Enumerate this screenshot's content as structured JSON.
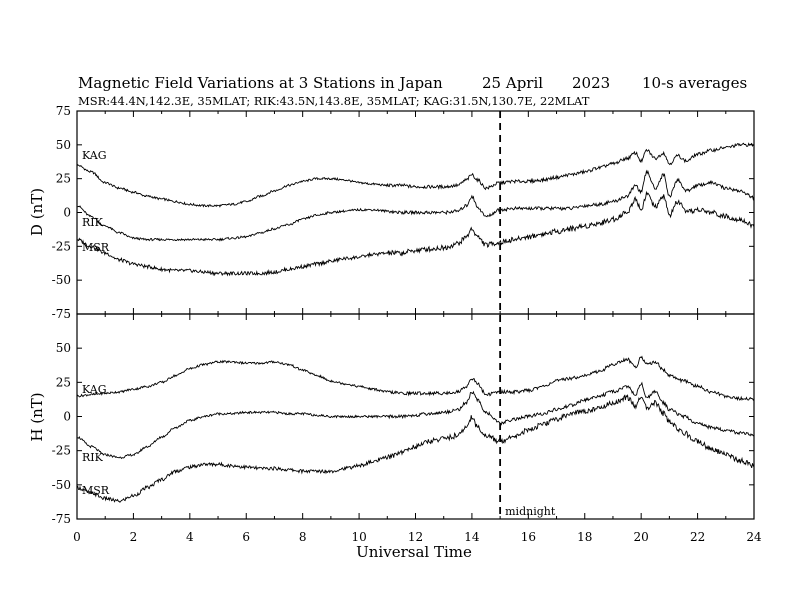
{
  "header": {
    "title_main": "Magnetic Field Variations at 3 Stations in Japan",
    "title_date": "25  April",
    "title_year": "2023",
    "title_avg": "10-s averages",
    "subtitle": "MSR:44.4N,142.3E, 35MLAT;  RIK:43.5N,143.8E, 35MLAT;  KAG:31.5N,130.7E, 22MLAT"
  },
  "annotations": {
    "midnight": "midnight",
    "midnight_ut": 15
  },
  "chart_data": [
    {
      "type": "line",
      "panel": "D",
      "ylabel": "D (nT)",
      "xlim": [
        0,
        24
      ],
      "ylim": [
        -75,
        75
      ],
      "yticks": [
        75,
        50,
        25,
        0,
        -25,
        -50,
        -75
      ],
      "series": [
        {
          "name": "KAG",
          "x": [
            0,
            0.5,
            1,
            1.5,
            2,
            2.5,
            3,
            3.5,
            4,
            4.5,
            5,
            5.5,
            6,
            6.5,
            7,
            7.5,
            8,
            8.5,
            9,
            9.5,
            10,
            10.5,
            11,
            11.5,
            12,
            12.5,
            13,
            13.5,
            13.8,
            14,
            14.2,
            14.5,
            15,
            15.5,
            16,
            16.5,
            17,
            17.5,
            18,
            18.5,
            19,
            19.5,
            19.8,
            20,
            20.2,
            20.5,
            20.8,
            21,
            21.3,
            21.6,
            22,
            22.5,
            23,
            23.5,
            24
          ],
          "y": [
            35,
            30,
            22,
            18,
            15,
            12,
            10,
            8,
            6,
            5,
            5,
            6,
            8,
            12,
            16,
            20,
            23,
            25,
            25,
            24,
            22,
            21,
            20,
            20,
            19,
            19,
            19,
            20,
            24,
            28,
            24,
            18,
            22,
            23,
            23,
            24,
            26,
            28,
            30,
            33,
            36,
            40,
            44,
            38,
            46,
            40,
            44,
            36,
            42,
            38,
            43,
            46,
            48,
            50,
            50
          ]
        },
        {
          "name": "RIK",
          "x": [
            0,
            0.5,
            1,
            1.5,
            2,
            2.5,
            3,
            3.5,
            4,
            4.5,
            5,
            5.5,
            6,
            6.5,
            7,
            7.5,
            8,
            8.5,
            9,
            9.5,
            10,
            10.5,
            11,
            11.5,
            12,
            12.5,
            13,
            13.5,
            13.8,
            14,
            14.2,
            14.5,
            15,
            15.5,
            16,
            16.5,
            17,
            17.5,
            18,
            18.5,
            19,
            19.5,
            19.8,
            20,
            20.2,
            20.5,
            20.8,
            21,
            21.3,
            21.6,
            22,
            22.5,
            23,
            23.5,
            24
          ],
          "y": [
            5,
            -3,
            -10,
            -15,
            -19,
            -20,
            -20,
            -20,
            -20,
            -20,
            -20,
            -19,
            -18,
            -15,
            -12,
            -9,
            -5,
            -2,
            0,
            1,
            2,
            2,
            1,
            0,
            0,
            0,
            0,
            1,
            5,
            12,
            4,
            -3,
            2,
            3,
            3,
            3,
            3,
            3,
            5,
            6,
            8,
            12,
            20,
            15,
            30,
            18,
            28,
            12,
            24,
            16,
            20,
            22,
            18,
            16,
            11
          ]
        },
        {
          "name": "MSR",
          "x": [
            0,
            0.5,
            1,
            1.5,
            2,
            2.5,
            3,
            3.5,
            4,
            4.5,
            5,
            5.5,
            6,
            6.5,
            7,
            7.5,
            8,
            8.5,
            9,
            9.5,
            10,
            10.5,
            11,
            11.5,
            12,
            12.5,
            13,
            13.5,
            13.8,
            14,
            14.2,
            14.5,
            15,
            15.5,
            16,
            16.5,
            17,
            17.5,
            18,
            18.5,
            19,
            19.5,
            19.8,
            20,
            20.2,
            20.5,
            20.8,
            21,
            21.3,
            21.6,
            22,
            22.5,
            23,
            23.5,
            24
          ],
          "y": [
            -20,
            -25,
            -30,
            -35,
            -38,
            -40,
            -42,
            -43,
            -43,
            -44,
            -45,
            -45,
            -45,
            -45,
            -44,
            -42,
            -40,
            -38,
            -36,
            -34,
            -33,
            -31,
            -30,
            -30,
            -28,
            -27,
            -26,
            -23,
            -18,
            -12,
            -18,
            -24,
            -22,
            -20,
            -18,
            -16,
            -14,
            -12,
            -10,
            -8,
            -5,
            0,
            10,
            2,
            14,
            4,
            12,
            -2,
            8,
            0,
            2,
            0,
            -3,
            -5,
            -10
          ]
        }
      ]
    },
    {
      "type": "line",
      "panel": "H",
      "ylabel": "H (nT)",
      "xlabel": "Universal Time",
      "xlim": [
        0,
        24
      ],
      "ylim": [
        -75,
        75
      ],
      "xticks": [
        0,
        2,
        4,
        6,
        8,
        10,
        12,
        14,
        16,
        18,
        20,
        22,
        24
      ],
      "yticks": [
        50,
        25,
        0,
        -25,
        -50,
        -75
      ],
      "series": [
        {
          "name": "KAG",
          "x": [
            0,
            0.5,
            1,
            1.5,
            2,
            2.5,
            3,
            3.5,
            4,
            4.5,
            5,
            5.5,
            6,
            6.5,
            7,
            7.5,
            8,
            8.5,
            9,
            9.5,
            10,
            10.5,
            11,
            11.5,
            12,
            12.5,
            13,
            13.5,
            13.8,
            14,
            14.2,
            14.5,
            15,
            15.5,
            16,
            16.5,
            17,
            17.5,
            18,
            18.5,
            19,
            19.5,
            19.8,
            20,
            20.2,
            20.5,
            20.8,
            21,
            21.5,
            22,
            22.5,
            23,
            23.5,
            24
          ],
          "y": [
            15,
            16,
            17,
            18,
            20,
            22,
            25,
            30,
            35,
            38,
            40,
            40,
            39,
            39,
            40,
            38,
            34,
            30,
            26,
            24,
            22,
            20,
            18,
            17,
            17,
            17,
            17,
            18,
            22,
            28,
            24,
            16,
            18,
            18,
            19,
            22,
            26,
            28,
            30,
            33,
            38,
            42,
            36,
            44,
            38,
            40,
            34,
            30,
            26,
            22,
            18,
            15,
            13,
            13
          ]
        },
        {
          "name": "RIK",
          "x": [
            0,
            0.5,
            1,
            1.5,
            2,
            2.5,
            3,
            3.5,
            4,
            4.5,
            5,
            5.5,
            6,
            6.5,
            7,
            7.5,
            8,
            8.5,
            9,
            9.5,
            10,
            10.5,
            11,
            11.5,
            12,
            12.5,
            13,
            13.5,
            13.8,
            14,
            14.2,
            14.5,
            15,
            15.5,
            16,
            16.5,
            17,
            17.5,
            18,
            18.5,
            19,
            19.5,
            19.8,
            20,
            20.2,
            20.5,
            20.8,
            21,
            21.5,
            22,
            22.5,
            23,
            23.5,
            24
          ],
          "y": [
            -15,
            -22,
            -28,
            -30,
            -28,
            -22,
            -15,
            -8,
            -3,
            0,
            2,
            2,
            3,
            3,
            3,
            2,
            2,
            1,
            0,
            0,
            0,
            0,
            0,
            0,
            1,
            2,
            3,
            5,
            10,
            18,
            12,
            3,
            -5,
            -2,
            0,
            2,
            5,
            8,
            12,
            15,
            18,
            22,
            16,
            24,
            14,
            18,
            10,
            5,
            0,
            -5,
            -8,
            -10,
            -12,
            -14
          ]
        },
        {
          "name": "MSR",
          "x": [
            0,
            0.5,
            1,
            1.5,
            2,
            2.5,
            3,
            3.5,
            4,
            4.5,
            5,
            5.5,
            6,
            6.5,
            7,
            7.5,
            8,
            8.5,
            9,
            9.5,
            10,
            10.5,
            11,
            11.5,
            12,
            12.5,
            13,
            13.5,
            13.8,
            14,
            14.2,
            14.5,
            15,
            15.5,
            16,
            16.5,
            17,
            17.5,
            18,
            18.5,
            19,
            19.5,
            19.8,
            20,
            20.2,
            20.5,
            20.8,
            21,
            21.5,
            22,
            22.5,
            23,
            23.5,
            24
          ],
          "y": [
            -52,
            -56,
            -60,
            -62,
            -58,
            -52,
            -46,
            -40,
            -37,
            -35,
            -35,
            -36,
            -37,
            -38,
            -38,
            -39,
            -40,
            -40,
            -40,
            -38,
            -36,
            -33,
            -30,
            -26,
            -22,
            -18,
            -16,
            -14,
            -8,
            0,
            -8,
            -14,
            -18,
            -14,
            -10,
            -6,
            -2,
            2,
            4,
            6,
            10,
            14,
            8,
            14,
            6,
            10,
            2,
            -4,
            -12,
            -18,
            -24,
            -28,
            -32,
            -36
          ]
        }
      ]
    }
  ]
}
